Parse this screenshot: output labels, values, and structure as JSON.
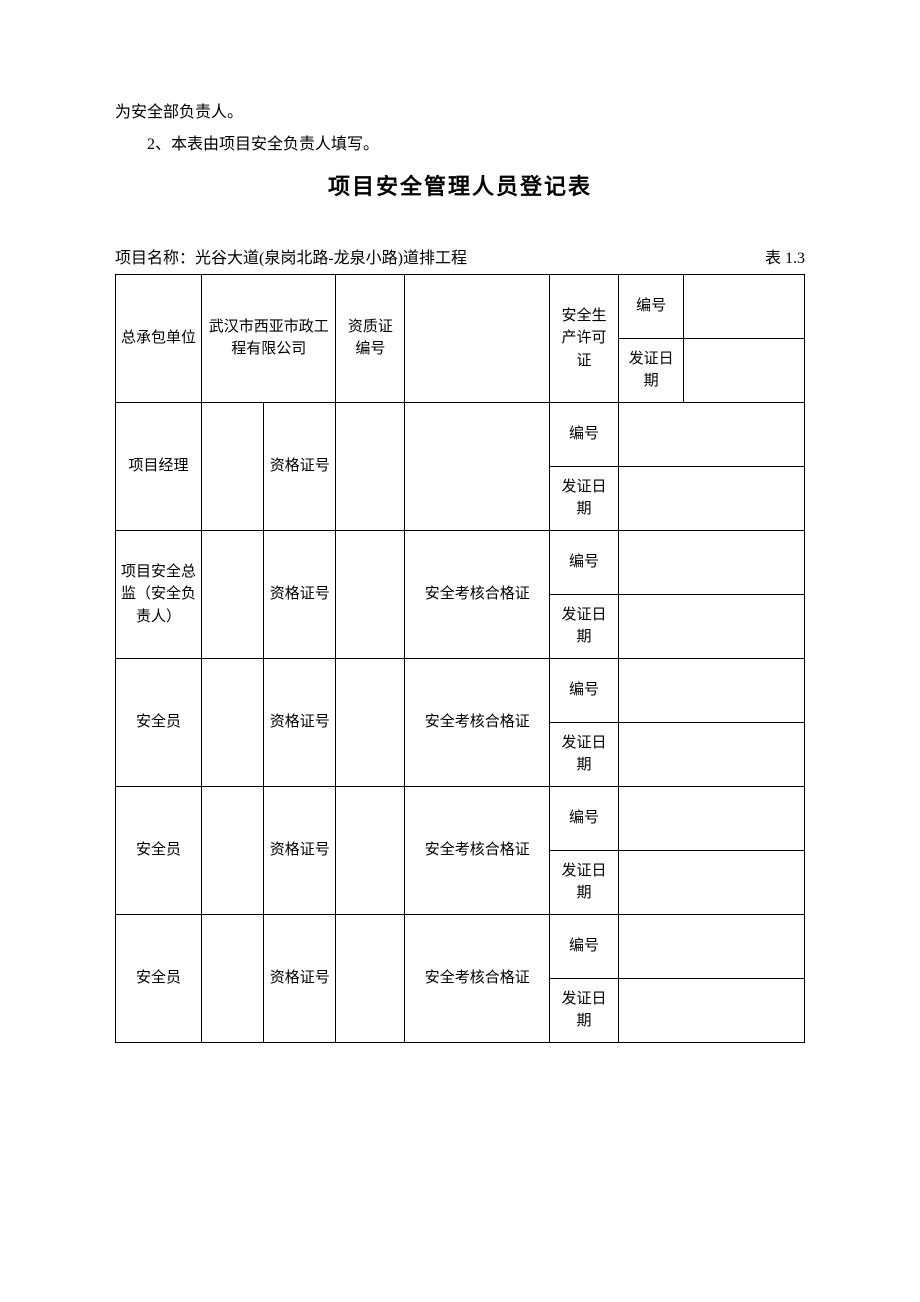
{
  "intro": {
    "line1": "为安全部负责人。",
    "line2": "2、本表由项目安全负责人填写。"
  },
  "title": "项目安全管理人员登记表",
  "meta": {
    "project_label": "项目名称：",
    "project_name": "光谷大道(泉岗北路-龙泉小路)道排工程",
    "table_no": "表 1.3"
  },
  "labels": {
    "contractor": "总承包单位",
    "qual_cert_no": "资质证编号",
    "safety_permit": "安全生产许可证",
    "number": "编号",
    "issue_date": "发证日期",
    "project_manager": "项目经理",
    "qual_no": "资格证号",
    "safety_director": "项目安全总监（安全负责人）",
    "safety_exam_cert": "安全考核合格证",
    "safety_officer": "安全员"
  },
  "values": {
    "contractor_name": "武汉市西亚市政工程有限公司",
    "qual_cert_no": "",
    "permit_number": "",
    "permit_issue_date": "",
    "pm_name": "",
    "pm_qual_no": "",
    "pm_number": "",
    "pm_issue_date": "",
    "director_name": "",
    "director_qual_no": "",
    "director_cert_number": "",
    "director_cert_date": "",
    "officer1_name": "",
    "officer1_qual_no": "",
    "officer1_cert_number": "",
    "officer1_cert_date": "",
    "officer2_name": "",
    "officer2_qual_no": "",
    "officer2_cert_number": "",
    "officer2_cert_date": "",
    "officer3_name": "",
    "officer3_qual_no": "",
    "officer3_cert_number": "",
    "officer3_cert_date": ""
  },
  "style": {
    "font_family": "SimSun",
    "body_fontsize": 16,
    "title_fontsize": 22,
    "cell_fontsize": 15,
    "border_color": "#000000",
    "background_color": "#ffffff",
    "text_color": "#000000"
  }
}
